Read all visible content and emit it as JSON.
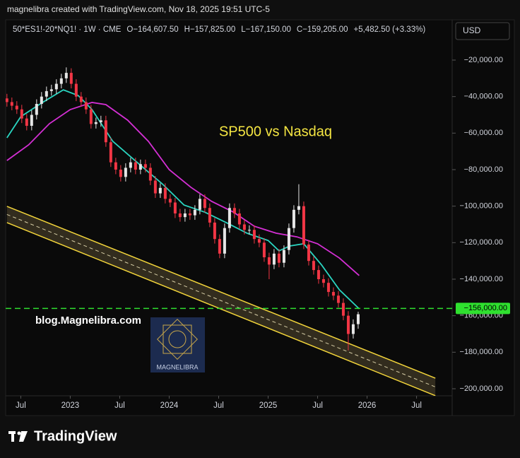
{
  "header": {
    "attribution": "magnelibra created with TradingView.com, Nov 18, 2025 19:51 UTC-5"
  },
  "chart_data": {
    "type": "candlestick",
    "title": "SP500 vs Nasdaq",
    "series_label": "50*ES1!-20*NQ1! · 1W · CME",
    "ohlc_labels": [
      {
        "key": "O",
        "label": "−164,607.50"
      },
      {
        "key": "H",
        "label": "−157,825.00"
      },
      {
        "key": "L",
        "label": "−167,150.00"
      },
      {
        "key": "C",
        "label": "−159,205.00"
      }
    ],
    "change_label": "+5,482.50 (+3.33%)",
    "currency": "USD",
    "watermark": "blog.Magnelibra.com",
    "logo_text": "MAGNELIBRA",
    "brand": "TradingView",
    "up_color": "#e6e6e6",
    "down_color": "#f23645",
    "x": [
      2022.36,
      2022.41,
      2022.46,
      2022.51,
      2022.56,
      2022.61,
      2022.66,
      2022.71,
      2022.76,
      2022.81,
      2022.86,
      2022.91,
      2022.96,
      2023.01,
      2023.06,
      2023.11,
      2023.16,
      2023.21,
      2023.26,
      2023.31,
      2023.36,
      2023.41,
      2023.46,
      2023.51,
      2023.56,
      2023.61,
      2023.66,
      2023.71,
      2023.76,
      2023.81,
      2023.86,
      2023.91,
      2023.96,
      2024.01,
      2024.06,
      2024.11,
      2024.16,
      2024.21,
      2024.26,
      2024.31,
      2024.36,
      2024.41,
      2024.46,
      2024.51,
      2024.56,
      2024.61,
      2024.66,
      2024.71,
      2024.76,
      2024.81,
      2024.86,
      2024.91,
      2024.96,
      2025.01,
      2025.06,
      2025.11,
      2025.16,
      2025.21,
      2025.26,
      2025.31,
      2025.36,
      2025.41,
      2025.46,
      2025.51,
      2025.56,
      2025.61,
      2025.66,
      2025.71,
      2025.76,
      2025.81,
      2025.86,
      2025.91
    ],
    "open": [
      -41000,
      -43000,
      -45000,
      -47000,
      -52000,
      -56000,
      -50000,
      -44000,
      -40000,
      -37000,
      -36000,
      -33000,
      -30000,
      -27000,
      -33000,
      -40000,
      -43000,
      -47000,
      -55000,
      -54000,
      -53000,
      -65000,
      -76000,
      -80000,
      -84000,
      -79000,
      -76000,
      -80000,
      -77000,
      -79000,
      -86000,
      -93000,
      -90000,
      -96000,
      -98000,
      -104000,
      -106000,
      -104000,
      -105000,
      -102000,
      -96000,
      -101000,
      -109000,
      -118000,
      -126000,
      -112000,
      -101000,
      -104000,
      -110000,
      -113000,
      -113000,
      -118000,
      -120000,
      -128000,
      -132000,
      -126000,
      -131000,
      -124000,
      -112000,
      -102000,
      -100000,
      -121000,
      -130000,
      -135000,
      -140000,
      -142000,
      -147000,
      -149000,
      -153000,
      -160000,
      -170000,
      -164607.5
    ],
    "high": [
      -38500,
      -40500,
      -42500,
      -44500,
      -49500,
      -47500,
      -41500,
      -37500,
      -34500,
      -33500,
      -30500,
      -27500,
      -24000,
      -24500,
      -30500,
      -37500,
      -40500,
      -44500,
      -51500,
      -50500,
      -50500,
      -62500,
      -73500,
      -77500,
      -76500,
      -73500,
      -73500,
      -74500,
      -74500,
      -76500,
      -83500,
      -87500,
      -87500,
      -93500,
      -95500,
      -101500,
      -101500,
      -101500,
      -99500,
      -93500,
      -93500,
      -98500,
      -106500,
      -115500,
      -109500,
      -98500,
      -98500,
      -101500,
      -107500,
      -110500,
      -110500,
      -115500,
      -117500,
      -125500,
      -123500,
      -123500,
      -121500,
      -109500,
      -99500,
      -88000,
      -97500,
      -118500,
      -127500,
      -132500,
      -137500,
      -139500,
      -144500,
      -146500,
      -150500,
      -157500,
      -162000,
      -157825
    ],
    "low": [
      -45500,
      -47500,
      -49500,
      -54500,
      -58500,
      -58500,
      -52500,
      -46500,
      -42500,
      -39500,
      -38500,
      -35500,
      -32500,
      -35500,
      -42500,
      -45500,
      -49500,
      -57500,
      -57500,
      -56500,
      -67500,
      -78500,
      -82500,
      -86500,
      -86500,
      -81500,
      -82500,
      -82500,
      -81500,
      -88500,
      -95500,
      -95500,
      -98500,
      -100500,
      -106500,
      -108500,
      -108500,
      -107500,
      -107500,
      -104500,
      -103500,
      -111500,
      -120500,
      -128500,
      -128500,
      -114500,
      -106500,
      -112500,
      -115500,
      -115500,
      -120500,
      -122500,
      -130500,
      -140000,
      -134500,
      -133500,
      -133500,
      -126500,
      -114500,
      -104500,
      -123500,
      -132500,
      -137500,
      -142500,
      -144500,
      -149500,
      -151500,
      -155500,
      -162500,
      -179000,
      -172500,
      -167150
    ],
    "close": [
      -43000,
      -45000,
      -47000,
      -52000,
      -56000,
      -50000,
      -44000,
      -40000,
      -37000,
      -36000,
      -33000,
      -30000,
      -27000,
      -33000,
      -40000,
      -43000,
      -47000,
      -55000,
      -54000,
      -53000,
      -65000,
      -76000,
      -80000,
      -84000,
      -79000,
      -76000,
      -80000,
      -77000,
      -79000,
      -86000,
      -93000,
      -90000,
      -96000,
      -98000,
      -104000,
      -106000,
      -104000,
      -105000,
      -102000,
      -96000,
      -101000,
      -109000,
      -118000,
      -126000,
      -112000,
      -101000,
      -104000,
      -110000,
      -113000,
      -113000,
      -118000,
      -120000,
      -128000,
      -132000,
      -126000,
      -131000,
      -124000,
      -112000,
      -102000,
      -100000,
      -121000,
      -130000,
      -135000,
      -140000,
      -142000,
      -147000,
      -149000,
      -153000,
      -160000,
      -170000,
      -164687.5,
      -159205
    ],
    "lines": [
      {
        "color": "#2ad4c0",
        "x": [
          2022.36,
          2022.5,
          2022.72,
          2022.93,
          2023.08,
          2023.22,
          2023.43,
          2023.72,
          2023.93,
          2024.15,
          2024.36,
          2024.58,
          2024.79,
          2025.0,
          2025.11,
          2025.22,
          2025.36,
          2025.54,
          2025.72,
          2025.92
        ],
        "values": [
          -62600,
          -51000,
          -43200,
          -36300,
          -39400,
          -47100,
          -64500,
          -78100,
          -87800,
          -99400,
          -103300,
          -109100,
          -114900,
          -118800,
          -124500,
          -121800,
          -120600,
          -132200,
          -145800,
          -156200
        ]
      },
      {
        "color": "#d42fd4",
        "x": [
          2022.36,
          2022.58,
          2022.79,
          2023.0,
          2023.22,
          2023.36,
          2023.58,
          2023.79,
          2024.0,
          2024.22,
          2024.43,
          2024.65,
          2024.86,
          2025.08,
          2025.29,
          2025.5,
          2025.72,
          2025.92
        ],
        "values": [
          -75000,
          -66400,
          -54800,
          -47100,
          -43200,
          -44400,
          -52900,
          -64500,
          -80000,
          -89700,
          -97400,
          -103300,
          -111000,
          -114800,
          -116800,
          -120600,
          -128400,
          -138000
        ]
      }
    ],
    "channel": {
      "color": "#f2d43a",
      "x": [
        2022.36,
        2026.69
      ],
      "upper": [
        -100100,
        -194200
      ],
      "lower": [
        -109000,
        -203800
      ]
    },
    "hline": {
      "value": -156000,
      "label": "−156,000.00",
      "color": "#2fe02f"
    },
    "xlim": [
      2022.29,
      2026.86
    ],
    "ylim": [
      -203870,
      1290
    ],
    "xticks": [
      {
        "value": 2022.5,
        "label": "Jul"
      },
      {
        "value": 2023,
        "label": "2023"
      },
      {
        "value": 2023.5,
        "label": "Jul"
      },
      {
        "value": 2024,
        "label": "2024"
      },
      {
        "value": 2024.5,
        "label": "Jul"
      },
      {
        "value": 2025,
        "label": "2025"
      },
      {
        "value": 2025.5,
        "label": "Jul"
      },
      {
        "value": 2026,
        "label": "2026"
      },
      {
        "value": 2026.5,
        "label": "Jul"
      }
    ],
    "yticks": [
      {
        "value": -20000,
        "label": "−20,000.00"
      },
      {
        "value": -40000,
        "label": "−40,000.00"
      },
      {
        "value": -60000,
        "label": "−60,000.00"
      },
      {
        "value": -80000,
        "label": "−80,000.00"
      },
      {
        "value": -100000,
        "label": "−100,000.00"
      },
      {
        "value": -120000,
        "label": "−120,000.00"
      },
      {
        "value": -140000,
        "label": "−140,000.00"
      },
      {
        "value": -160000,
        "label": "−160,000.00"
      },
      {
        "value": -180000,
        "label": "−180,000.00"
      },
      {
        "value": -200000,
        "label": "−200,000.00"
      }
    ],
    "grid": false
  }
}
